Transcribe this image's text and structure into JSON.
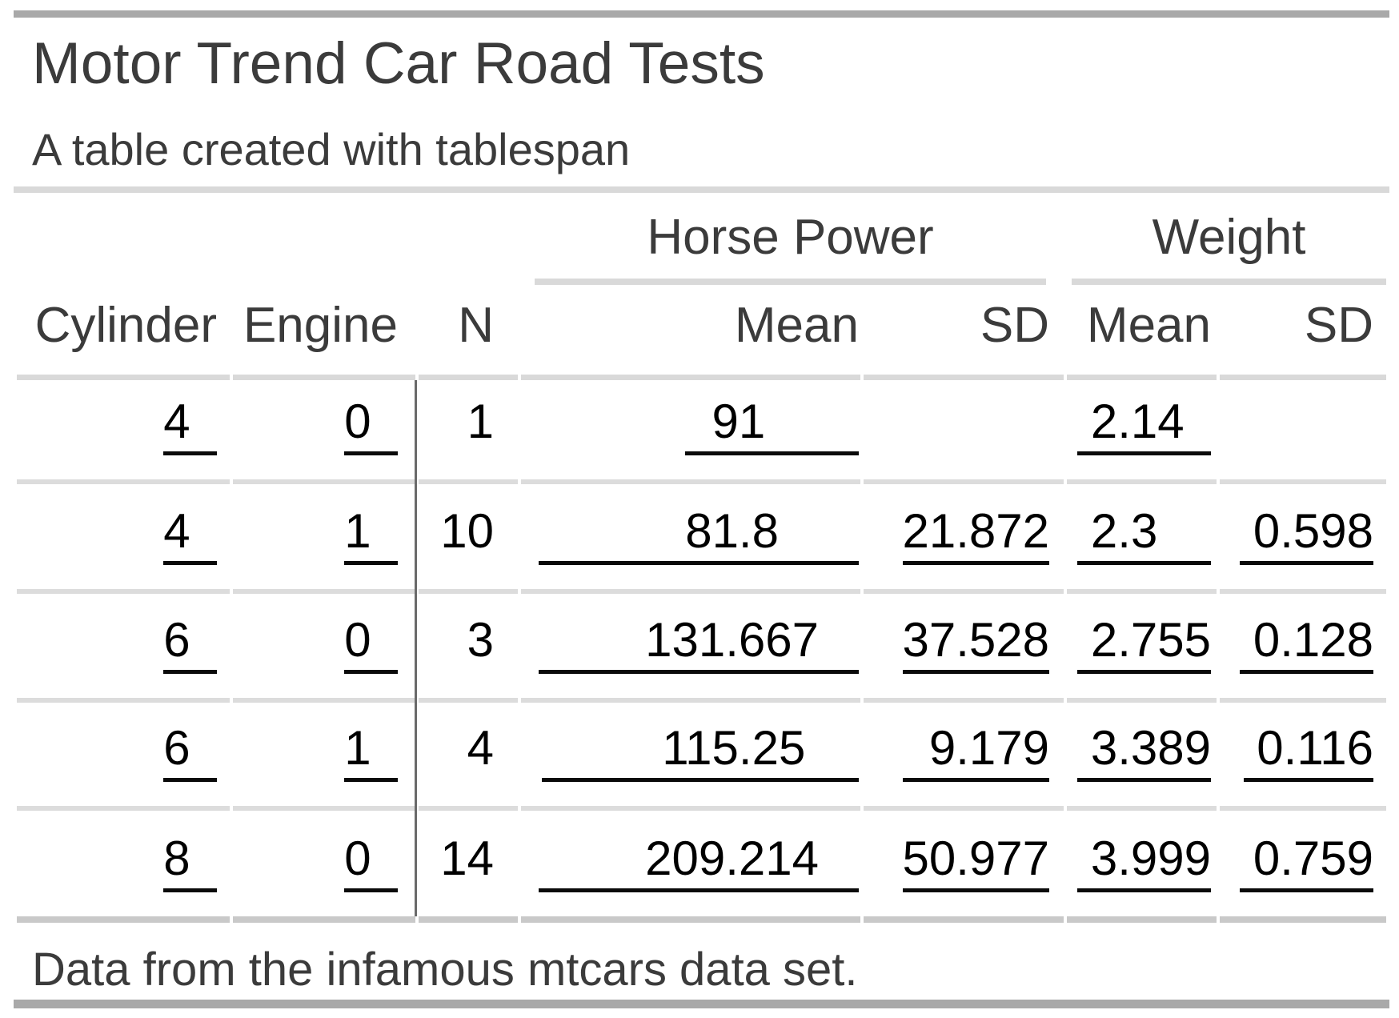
{
  "title": "Motor Trend Car Road Tests",
  "subtitle": "A table created with tablespan",
  "footer": "Data from the infamous mtcars data set.",
  "colors": {
    "accent_bar": "#a9a9a9",
    "rule_light": "#d9d9d9",
    "rule_bottom": "#c9c9c9",
    "text_heading": "#3b3b3b",
    "text_data": "#000000",
    "cell_underline": "#0a0a0a",
    "column_divider": "#6a6a6a"
  },
  "table": {
    "spanners": [
      {
        "label": "Horse Power"
      },
      {
        "label": "Weight"
      }
    ],
    "columns": [
      "Cylinder",
      "Engine",
      "N",
      "Mean",
      "SD",
      "Mean",
      "SD"
    ],
    "rows": [
      {
        "cells": [
          "4  ",
          "0  ",
          "1",
          "  91       ",
          "",
          " 2.14  ",
          ""
        ]
      },
      {
        "cells": [
          "4  ",
          "1  ",
          "10",
          "           81.8      ",
          "21.872",
          " 2.3    ",
          " 0.598"
        ]
      },
      {
        "cells": [
          "6  ",
          "0  ",
          "3",
          "        131.667   ",
          "37.528",
          " 2.755",
          " 0.128"
        ]
      },
      {
        "cells": [
          "6  ",
          "1  ",
          "4",
          "         115.25    ",
          "  9.179",
          " 3.389",
          " 0.116"
        ]
      },
      {
        "cells": [
          "8  ",
          "0  ",
          "14",
          "        209.214   ",
          "50.977",
          " 3.999",
          " 0.759"
        ]
      }
    ]
  },
  "chart_data": {
    "type": "table",
    "title": "Motor Trend Car Road Tests",
    "subtitle": "A table created with tablespan",
    "footnote": "Data from the infamous mtcars data set.",
    "column_groups": [
      {
        "label": "",
        "columns": [
          "Cylinder",
          "Engine",
          "N"
        ]
      },
      {
        "label": "Horse Power",
        "columns": [
          "Mean",
          "SD"
        ]
      },
      {
        "label": "Weight",
        "columns": [
          "Mean",
          "SD"
        ]
      }
    ],
    "rows": [
      {
        "Cylinder": 4,
        "Engine": 0,
        "N": 1,
        "HorsePower_Mean": 91,
        "HorsePower_SD": null,
        "Weight_Mean": 2.14,
        "Weight_SD": null
      },
      {
        "Cylinder": 4,
        "Engine": 1,
        "N": 10,
        "HorsePower_Mean": 81.8,
        "HorsePower_SD": 21.872,
        "Weight_Mean": 2.3,
        "Weight_SD": 0.598
      },
      {
        "Cylinder": 6,
        "Engine": 0,
        "N": 3,
        "HorsePower_Mean": 131.667,
        "HorsePower_SD": 37.528,
        "Weight_Mean": 2.755,
        "Weight_SD": 0.128
      },
      {
        "Cylinder": 6,
        "Engine": 1,
        "N": 4,
        "HorsePower_Mean": 115.25,
        "HorsePower_SD": 9.179,
        "Weight_Mean": 3.389,
        "Weight_SD": 0.116
      },
      {
        "Cylinder": 8,
        "Engine": 0,
        "N": 14,
        "HorsePower_Mean": 209.214,
        "HorsePower_SD": 50.977,
        "Weight_Mean": 3.999,
        "Weight_SD": 0.759
      }
    ]
  }
}
